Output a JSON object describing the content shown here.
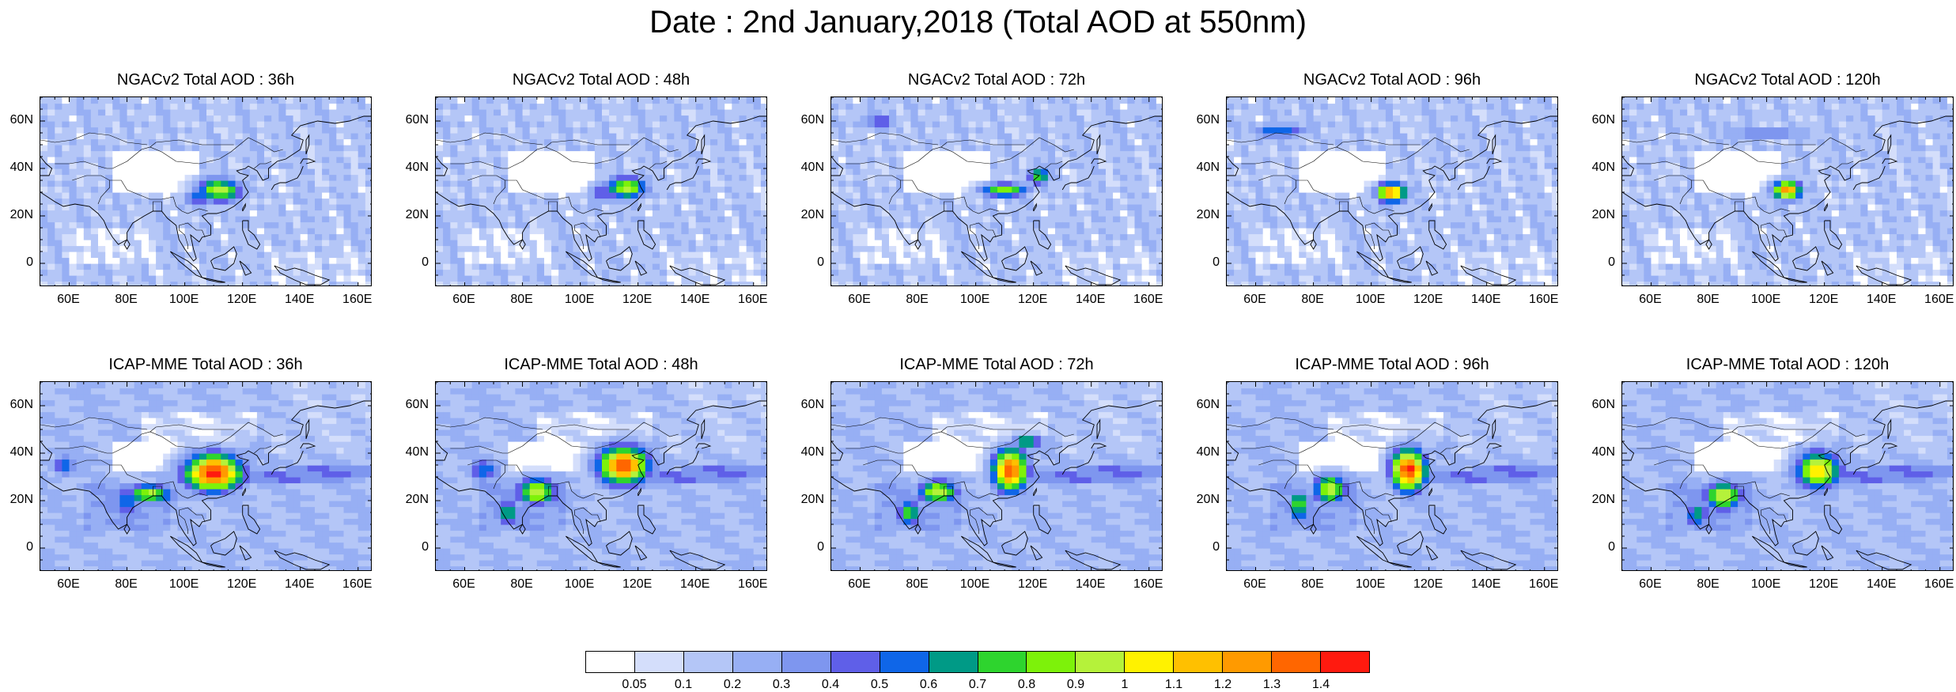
{
  "title": "Date : 2nd January,2018 (Total AOD at 550nm)",
  "panels": [
    {
      "title": "NGACv2 Total AOD : 36h",
      "model": "NGACv2",
      "lead": "36h",
      "hotspots": [
        {
          "lon": 112,
          "lat": 31,
          "peak": 0.95,
          "rlon": 8,
          "rlat": 5
        },
        {
          "lon": 105,
          "lat": 28,
          "peak": 0.6,
          "rlon": 5,
          "rlat": 4
        }
      ]
    },
    {
      "title": "NGACv2 Total AOD : 48h",
      "model": "NGACv2",
      "lead": "48h",
      "hotspots": [
        {
          "lon": 116,
          "lat": 32,
          "peak": 0.95,
          "rlon": 7,
          "rlat": 5
        },
        {
          "lon": 108,
          "lat": 30,
          "peak": 0.55,
          "rlon": 5,
          "rlat": 4
        }
      ]
    },
    {
      "title": "NGACv2 Total AOD : 72h",
      "model": "NGACv2",
      "lead": "72h",
      "hotspots": [
        {
          "lon": 110,
          "lat": 31,
          "peak": 0.9,
          "rlon": 8,
          "rlat": 3
        },
        {
          "lon": 122,
          "lat": 37,
          "peak": 0.8,
          "rlon": 4,
          "rlat": 4
        },
        {
          "lon": 67,
          "lat": 60,
          "peak": 0.55,
          "rlon": 6,
          "rlat": 3
        }
      ]
    },
    {
      "title": "NGACv2 Total AOD : 96h",
      "model": "NGACv2",
      "lead": "96h",
      "hotspots": [
        {
          "lon": 107,
          "lat": 30,
          "peak": 1.3,
          "rlon": 5,
          "rlat": 4
        },
        {
          "lon": 68,
          "lat": 56,
          "peak": 0.6,
          "rlon": 10,
          "rlat": 3
        }
      ]
    },
    {
      "title": "NGACv2 Total AOD : 120h",
      "model": "NGACv2",
      "lead": "120h",
      "hotspots": [
        {
          "lon": 107,
          "lat": 31,
          "peak": 1.3,
          "rlon": 5,
          "rlat": 4
        },
        {
          "lon": 100,
          "lat": 55,
          "peak": 0.4,
          "rlon": 20,
          "rlat": 3
        }
      ]
    },
    {
      "title": "ICAP-MME Total AOD : 36h",
      "model": "ICAP-MME",
      "lead": "36h",
      "hotspots": [
        {
          "lon": 110,
          "lat": 32,
          "peak": 1.45,
          "rlon": 10,
          "rlat": 8
        },
        {
          "lon": 88,
          "lat": 23,
          "peak": 0.95,
          "rlon": 8,
          "rlat": 4
        },
        {
          "lon": 80,
          "lat": 20,
          "peak": 0.55,
          "rlon": 6,
          "rlat": 8
        },
        {
          "lon": 58,
          "lat": 35,
          "peak": 0.55,
          "rlon": 5,
          "rlat": 5
        }
      ]
    },
    {
      "title": "ICAP-MME Total AOD : 48h",
      "model": "ICAP-MME",
      "lead": "48h",
      "hotspots": [
        {
          "lon": 115,
          "lat": 35,
          "peak": 1.4,
          "rlon": 9,
          "rlat": 8
        },
        {
          "lon": 85,
          "lat": 24,
          "peak": 1.0,
          "rlon": 7,
          "rlat": 6
        },
        {
          "lon": 75,
          "lat": 15,
          "peak": 0.7,
          "rlon": 4,
          "rlat": 6
        },
        {
          "lon": 67,
          "lat": 33,
          "peak": 0.6,
          "rlon": 6,
          "rlat": 5
        }
      ]
    },
    {
      "title": "ICAP-MME Total AOD : 72h",
      "model": "ICAP-MME",
      "lead": "72h",
      "hotspots": [
        {
          "lon": 112,
          "lat": 33,
          "peak": 1.4,
          "rlon": 6,
          "rlat": 9
        },
        {
          "lon": 87,
          "lat": 24,
          "peak": 1.0,
          "rlon": 7,
          "rlat": 5
        },
        {
          "lon": 77,
          "lat": 15,
          "peak": 0.8,
          "rlon": 4,
          "rlat": 6
        },
        {
          "lon": 118,
          "lat": 45,
          "peak": 0.8,
          "rlon": 5,
          "rlat": 3
        }
      ]
    },
    {
      "title": "ICAP-MME Total AOD : 96h",
      "model": "ICAP-MME",
      "lead": "96h",
      "hotspots": [
        {
          "lon": 113,
          "lat": 33,
          "peak": 1.45,
          "rlon": 6,
          "rlat": 9
        },
        {
          "lon": 86,
          "lat": 25,
          "peak": 1.0,
          "rlon": 6,
          "rlat": 6
        },
        {
          "lon": 75,
          "lat": 18,
          "peak": 0.8,
          "rlon": 4,
          "rlat": 7
        }
      ]
    },
    {
      "title": "ICAP-MME Total AOD : 120h",
      "model": "ICAP-MME",
      "lead": "120h",
      "hotspots": [
        {
          "lon": 118,
          "lat": 33,
          "peak": 1.1,
          "rlon": 8,
          "rlat": 8
        },
        {
          "lon": 85,
          "lat": 22,
          "peak": 1.0,
          "rlon": 7,
          "rlat": 6
        },
        {
          "lon": 76,
          "lat": 14,
          "peak": 0.7,
          "rlon": 4,
          "rlat": 6
        }
      ]
    }
  ],
  "axes": {
    "x_range": [
      50,
      165
    ],
    "y_range": [
      -10,
      70
    ],
    "x_ticks": [
      {
        "value": 60,
        "label": "60E"
      },
      {
        "value": 80,
        "label": "80E"
      },
      {
        "value": 100,
        "label": "100E"
      },
      {
        "value": 120,
        "label": "120E"
      },
      {
        "value": 140,
        "label": "140E"
      },
      {
        "value": 160,
        "label": "160E"
      }
    ],
    "y_ticks": [
      {
        "value": 60,
        "label": "60N"
      },
      {
        "value": 40,
        "label": "40N"
      },
      {
        "value": 20,
        "label": "20N"
      },
      {
        "value": 0,
        "label": "0"
      }
    ]
  },
  "colorbar": {
    "levels": [
      "0.05",
      "0.1",
      "0.2",
      "0.3",
      "0.4",
      "0.5",
      "0.6",
      "0.7",
      "0.8",
      "0.9",
      "1",
      "1.1",
      "1.2",
      "1.3",
      "1.4"
    ],
    "colors": [
      "#ffffff",
      "#d4defb",
      "#b4c6f7",
      "#97aff4",
      "#7e96ef",
      "#5f5fe8",
      "#0f66e8",
      "#009a86",
      "#2ed42e",
      "#7df20a",
      "#b5f23a",
      "#fff200",
      "#ffc000",
      "#ff9a00",
      "#ff6600",
      "#ff1a0f"
    ]
  }
}
